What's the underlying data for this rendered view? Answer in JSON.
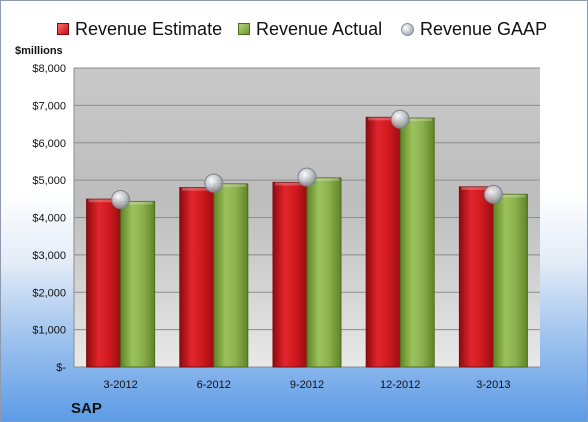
{
  "chart_data": {
    "type": "bar",
    "title": "",
    "ylabel": "$millions",
    "xlabel": "",
    "categories": [
      "3-2012",
      "6-2012",
      "9-2012",
      "12-2012",
      "3-2013"
    ],
    "series": [
      {
        "name": "Revenue Estimate",
        "values": [
          4490,
          4800,
          4940,
          6680,
          4820
        ],
        "color": "#d11a1f"
      },
      {
        "name": "Revenue Actual",
        "values": [
          4430,
          4900,
          5060,
          6660,
          4620
        ],
        "color": "#8db04f"
      }
    ],
    "gaap": {
      "name": "Revenue GAAP",
      "values": [
        4480,
        4920,
        5080,
        6630,
        4620
      ]
    },
    "ylim": [
      0,
      8000
    ],
    "yticks": [
      0,
      1000,
      2000,
      3000,
      4000,
      5000,
      6000,
      7000,
      8000
    ],
    "ytick_labels": [
      "$-",
      "$1,000",
      "$2,000",
      "$3,000",
      "$4,000",
      "$5,000",
      "$6,000",
      "$7,000",
      "$8,000"
    ],
    "legend_position": "top",
    "grid": true
  },
  "labels": {
    "unit": "$millions",
    "company": "SAP"
  }
}
